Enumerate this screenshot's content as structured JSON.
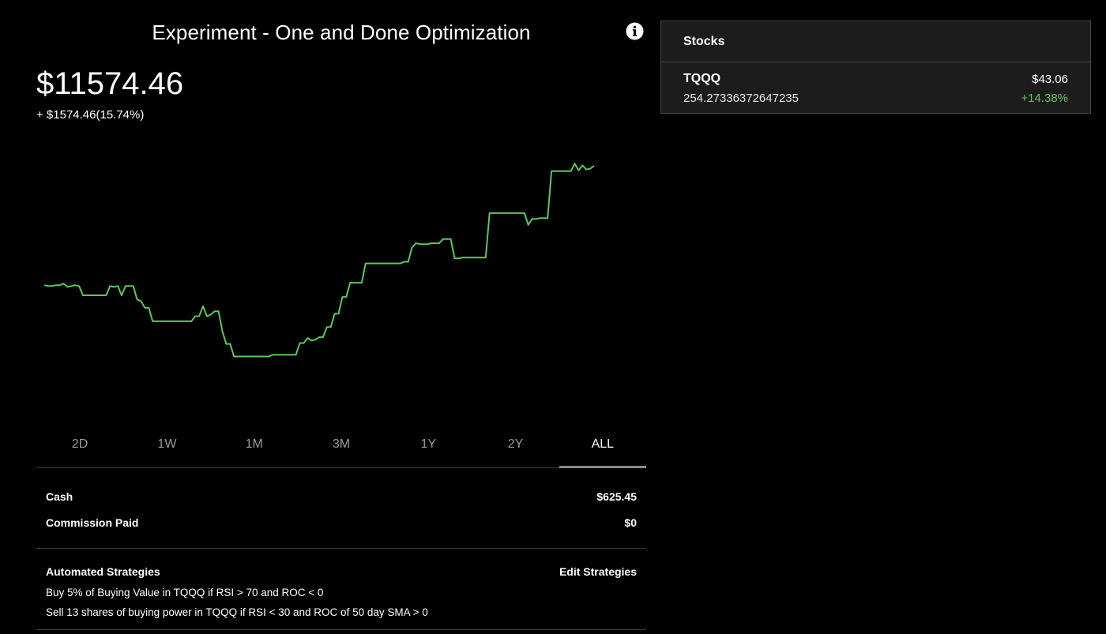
{
  "header": {
    "title": "Experiment - One and Done Optimization"
  },
  "portfolio": {
    "value": "$11574.46",
    "change": "+ $1574.46(15.74%)"
  },
  "chart_data": {
    "type": "line",
    "line_color": "#5cc85c",
    "background": "#000000",
    "grid": false,
    "title": "",
    "xlabel": "",
    "ylabel": "",
    "ylim": [
      8900,
      11800
    ],
    "series": [
      {
        "values": [
          10150,
          10140,
          10140,
          10150,
          10150,
          10170,
          10130,
          10140,
          10150,
          10140,
          10030,
          10030,
          10030,
          10030,
          10030,
          10030,
          10030,
          10140,
          10130,
          10140,
          10030,
          10140,
          10140,
          10140,
          9980,
          9960,
          9880,
          9880,
          9720,
          9720,
          9720,
          9720,
          9720,
          9720,
          9720,
          9720,
          9720,
          9720,
          9720,
          9780,
          9780,
          9900,
          9780,
          9800,
          9840,
          9840,
          9600,
          9450,
          9450,
          9300,
          9300,
          9300,
          9300,
          9300,
          9300,
          9300,
          9300,
          9300,
          9300,
          9320,
          9320,
          9320,
          9320,
          9320,
          9320,
          9320,
          9460,
          9460,
          9520,
          9490,
          9500,
          9530,
          9530,
          9650,
          9650,
          9810,
          9810,
          10010,
          10010,
          10180,
          10180,
          10180,
          10180,
          10410,
          10410,
          10410,
          10410,
          10410,
          10410,
          10410,
          10410,
          10410,
          10410,
          10430,
          10430,
          10600,
          10650,
          10640,
          10640,
          10640,
          10650,
          10650,
          10650,
          10700,
          10700,
          10700,
          10470,
          10470,
          10480,
          10480,
          10480,
          10480,
          10480,
          10480,
          10480,
          11010,
          11010,
          11010,
          11010,
          11010,
          11010,
          11010,
          11010,
          11010,
          11010,
          10870,
          10940,
          10940,
          10950,
          10950,
          10950,
          11510,
          11510,
          11510,
          11510,
          11510,
          11510,
          11600,
          11520,
          11580,
          11530,
          11540,
          11574.46
        ]
      }
    ]
  },
  "range_tabs": {
    "items": [
      "2D",
      "1W",
      "1M",
      "3M",
      "1Y",
      "2Y",
      "ALL"
    ],
    "active": "ALL"
  },
  "summary": {
    "cash_label": "Cash",
    "cash_value": "$625.45",
    "commission_label": "Commission Paid",
    "commission_value": "$0"
  },
  "strategies": {
    "heading": "Automated Strategies",
    "edit_label": "Edit Strategies",
    "items": [
      "Buy 5% of Buying Value in TQQQ if RSI > 70 and ROC < 0",
      "Sell 13 shares of buying power in TQQQ if RSI < 30 and ROC of 50 day SMA > 0"
    ]
  },
  "stocks": {
    "heading": "Stocks",
    "items": [
      {
        "symbol": "TQQQ",
        "shares": "254.27336372647235",
        "price": "$43.06",
        "change": "+14.38%",
        "change_color": "#5cc85c"
      }
    ]
  },
  "icons": {
    "info": "info-icon"
  }
}
